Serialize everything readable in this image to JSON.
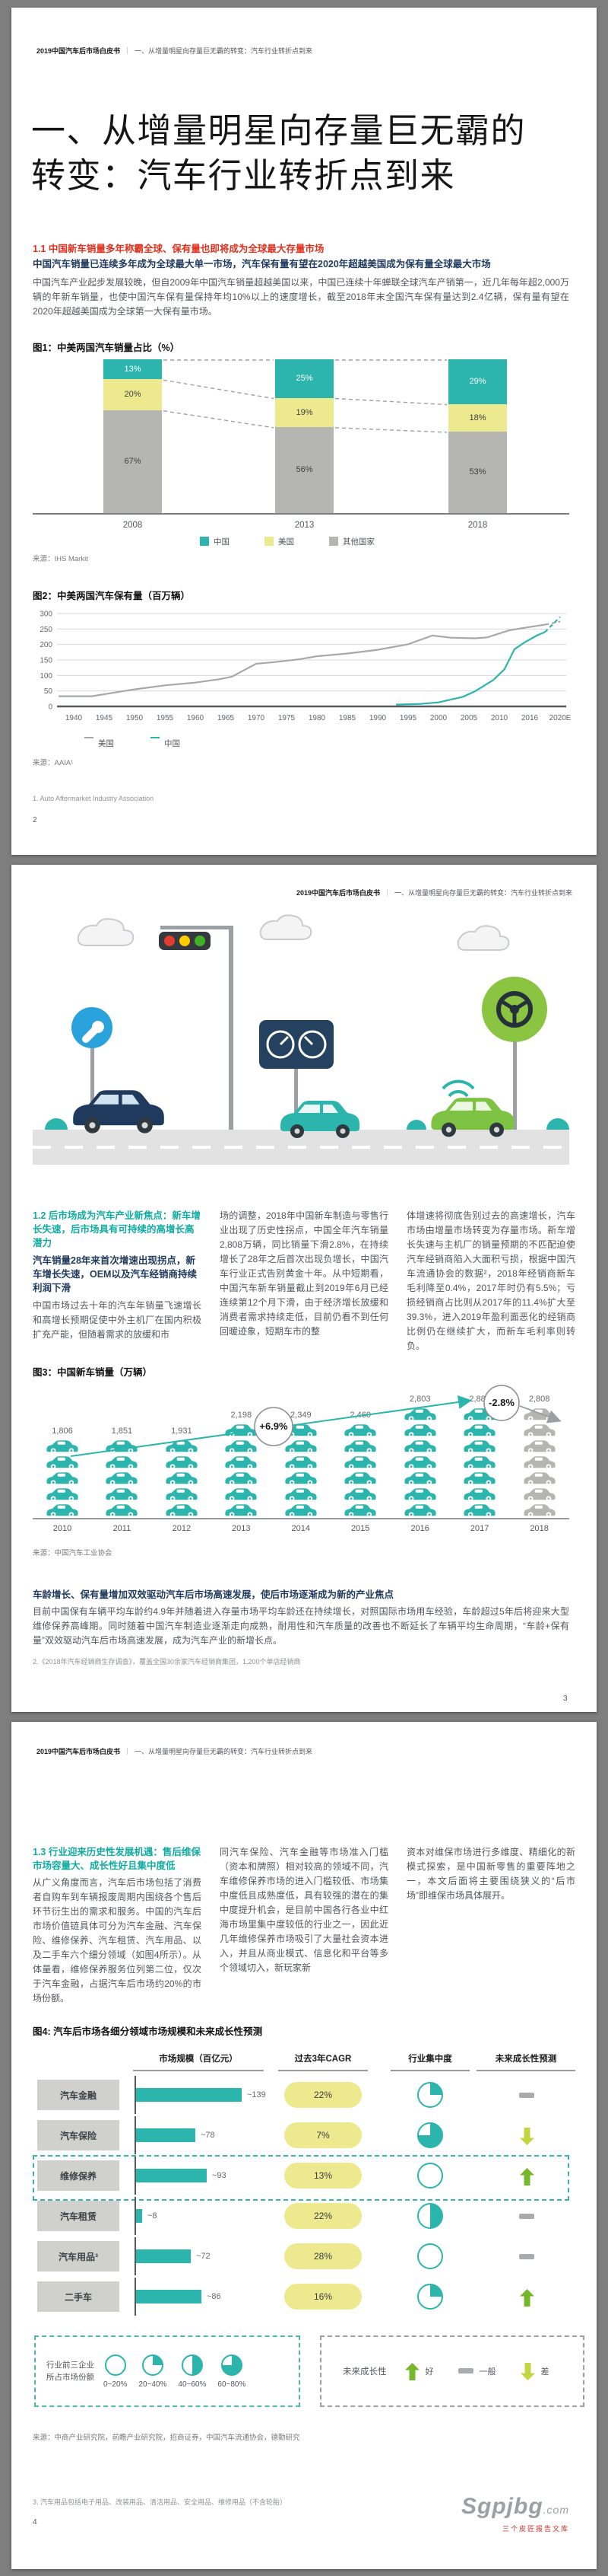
{
  "header": {
    "book": "2019中国汽车后市场白皮书",
    "sep": "｜",
    "chapter": "一、从增量明星向存量巨无霸的转变：汽车行业转折点到来"
  },
  "page1": {
    "title1": "一、从增量明星向存量巨无霸的",
    "title2": "转变：汽车行业转折点到来",
    "s11_heading": "1.1 中国新车销量多年称霸全球、保有量也即将成为全球最大存量市场",
    "s11_sub": "中国汽车销量已连续多年成为全球最大单一市场，汽车保有量有望在2020年超越美国成为保有量全球最大市场",
    "s11_body": "中国汽车产业起步发展较晚，但自2009年中国汽车销量超越美国以来，中国已连续十年蝉联全球汽车产销第一，近几年每年超2,000万辆的年新车销量，也使中国汽车保有量保持年均10%以上的速度增长，截至2018年末全国汽车保有量达到2.4亿辆，保有量有望在2020年超越美国成为全球第一大保有量市场。",
    "fig1_title": "图1：中美两国汽车销量占比（%）",
    "fig1_source": "来源：IHS Markit",
    "fig2_title": "图2：中美两国汽车保有量（百万辆）",
    "fig2_source": "来源：AAIA¹",
    "footnote": "1.  Auto Aftermarket Industry Association",
    "page_no": "2"
  },
  "chart_data": [
    {
      "id": "chart1",
      "type": "bar",
      "subtype": "stacked-percent",
      "title": "图1：中美两国汽车销量占比（%）",
      "categories": [
        "2008",
        "2013",
        "2018"
      ],
      "series": [
        {
          "name": "中国",
          "color": "#2cb5ad",
          "values": [
            13,
            25,
            29
          ]
        },
        {
          "name": "美国",
          "color": "#ece98f",
          "values": [
            20,
            19,
            18
          ]
        },
        {
          "name": "其他国家",
          "color": "#b5b5b2",
          "values": [
            67,
            56,
            53
          ]
        }
      ],
      "ylim": [
        0,
        100
      ]
    },
    {
      "id": "chart2",
      "type": "line",
      "title": "图2：中美两国汽车保有量（百万辆）",
      "y_ticks": [
        0,
        50,
        100,
        150,
        200,
        250,
        300
      ],
      "x_ticks": [
        "1940",
        "1945",
        "1950",
        "1955",
        "1960",
        "1965",
        "1970",
        "1975",
        "1980",
        "1985",
        "1990",
        "1995",
        "2000",
        "2005",
        "2010",
        "2016",
        "2020E"
      ],
      "ylim": [
        0,
        300
      ],
      "grid": true,
      "legend_position": "bottom-left",
      "series": [
        {
          "name": "美国",
          "color": "#a7a8aa",
          "solid": [
            [
              1936,
              33
            ],
            [
              1943,
              33
            ],
            [
              1950,
              55
            ],
            [
              1955,
              68
            ],
            [
              1960,
              77
            ],
            [
              1964,
              88
            ],
            [
              1966,
              96
            ],
            [
              1970,
              138
            ],
            [
              1973,
              143
            ],
            [
              1977,
              152
            ],
            [
              1980,
              162
            ],
            [
              1985,
              171
            ],
            [
              1990,
              183
            ],
            [
              1995,
              201
            ],
            [
              1999,
              229
            ],
            [
              2002,
              222
            ],
            [
              2006,
              220
            ],
            [
              2008,
              223
            ],
            [
              2012,
              246
            ],
            [
              2015,
              254
            ],
            [
              2018,
              264
            ]
          ],
          "dashed": [
            [
              2018,
              264
            ],
            [
              2020,
              274
            ]
          ]
        },
        {
          "name": "中国",
          "color": "#2cb5ad",
          "solid": [
            [
              1993,
              6
            ],
            [
              1997,
              8
            ],
            [
              2000,
              13
            ],
            [
              2004,
              31
            ],
            [
              2006,
              49
            ],
            [
              2009,
              85
            ],
            [
              2011,
              120
            ],
            [
              2013,
              185
            ],
            [
              2015,
              207
            ],
            [
              2017,
              230
            ],
            [
              2018,
              240
            ]
          ],
          "dashed": [
            [
              2018,
              240
            ],
            [
              2020,
              289
            ]
          ]
        }
      ]
    },
    {
      "id": "chart3",
      "type": "bar",
      "subtype": "pictogram-cars",
      "title": "图3：中国新车销量（万辆）",
      "categories": [
        "2010",
        "2011",
        "2012",
        "2013",
        "2014",
        "2015",
        "2016",
        "2017",
        "2018"
      ],
      "values": [
        1806,
        1851,
        1931,
        2198,
        2349,
        2460,
        2803,
        2888,
        2808
      ],
      "labels": [
        "1,806",
        "1,851",
        "1,931",
        "2,198",
        "2,349",
        "2,460",
        "2,803",
        "2,888",
        "2,808"
      ],
      "bar_color": "#2cb5ad",
      "last_bar_color": "#b5b5b2",
      "annotations": [
        {
          "text": "+6.9%"
        },
        {
          "text": "-2.8%"
        }
      ]
    },
    {
      "id": "chart4",
      "type": "table",
      "title": "图4: 汽车后市场各细分领域市场规模和未来成长性预测",
      "columns": [
        "市场规模（百亿元）",
        "过去3年CAGR",
        "行业集中度",
        "未来成长性预测"
      ],
      "max_size": 139,
      "rows": [
        {
          "label": "汽车金融",
          "size": 139,
          "size_label": "~139",
          "cagr": "22%",
          "concentration": "20~40%",
          "trend": "flat",
          "highlight": false
        },
        {
          "label": "汽车保险",
          "size": 78,
          "size_label": "~78",
          "cagr": "7%",
          "concentration": "60~80%",
          "trend": "down",
          "highlight": false
        },
        {
          "label": "维修保养",
          "size": 93,
          "size_label": "~93",
          "cagr": "13%",
          "concentration": "0~20%",
          "trend": "up",
          "highlight": true
        },
        {
          "label": "汽车租赁",
          "size": 8,
          "size_label": "~8",
          "cagr": "22%",
          "concentration": "40~60%",
          "trend": "flat",
          "highlight": false
        },
        {
          "label": "汽车用品³",
          "size": 72,
          "size_label": "~72",
          "cagr": "28%",
          "concentration": "0~20%",
          "trend": "flat",
          "highlight": false
        },
        {
          "label": "二手车",
          "size": 86,
          "size_label": "~86",
          "cagr": "16%",
          "concentration": "20~40%",
          "trend": "up",
          "highlight": false
        }
      ],
      "legend_concentration": {
        "title": "行业前三企业\n所占市场份额",
        "items": [
          "0~20%",
          "20~40%",
          "40~60%",
          "60~80%"
        ]
      },
      "legend_growth": {
        "title": "未来成长性",
        "items": [
          {
            "trend": "up",
            "label": "好"
          },
          {
            "trend": "flat",
            "label": "一般"
          },
          {
            "trend": "down",
            "label": "差"
          }
        ]
      }
    }
  ],
  "page2": {
    "s12_heading": "1.2 后市场成为汽车产业新焦点：新车增长失速，后市场具有可持续的高增长高潜力",
    "s12_sub": "汽车销量28年来首次增速出现拐点，新车增长失速，OEM以及汽车经销商持续利润下滑",
    "col1": "中国市场过去十年的汽车年销量飞速增长和高增长预期促使中外主机厂在国内积极扩充产能，但随着需求的放缓和市",
    "col2": "场的调整，2018年中国新车制造与零售行业出现了历史性拐点，中国全年汽车销量2,808万辆，同比销量下滑2.8%，在持续增长了28年之后首次出现负增长，中国汽车行业正式告别黄金十年。从中短期看，中国汽车新车销量截止到2019年6月已经连续第12个月下滑，由于经济增长放缓和消费者需求持续走低，目前仍看不到任何回暖迹象，短期车市的整",
    "col3": "体增速将彻底告别过去的高速增长，汽车市场由增量市场转变为存量市场。新车增长失速与主机厂的销量预期的不匹配迫使汽车经销商陷入大面积亏损，根据中国汽车流通协会的数据²，2018年经销商新车毛利降至0.4%，2017年时仍有5.5%；亏损经销商占比则从2017年的11.4%扩大至39.3%，进入2019年盈利面恶化的经销商比例仍在继续扩大，而新车毛利率则转负。",
    "fig3_title": "图3：中国新车销量（万辆）",
    "fig3_source": "来源：中国汽车工业协会",
    "s12b_sub": "车龄增长、保有量增加双效驱动汽车后市场高速发展，使后市场逐渐成为新的产业焦点",
    "s12b_body": "目前中国保有车辆平均车龄约4.9年并随着进入存量市场平均车龄还在持续增长，对照国际市场用车经验，车龄超过5年后将迎来大型维修保养高峰期。同时随着中国汽车制造业逐渐走向成熟，耐用性和汽车质量的改善也不断延长了车辆平均生命周期，“车龄+保有量”双效驱动汽车后市场高速发展，成为汽车产业的新增长点。",
    "footnote": "2.《2018年汽车经销商生存调查》，覆盖全国30余家汽车经销商集团，1,200个单店经销商",
    "page_no": "3"
  },
  "page3": {
    "s13_heading": "1.3 行业迎来历史性发展机遇：售后维保市场容量大、成长性好且集中度低",
    "col1": "从广义角度而言，汽车后市场包括了消费者自购车到车辆报废周期内围绕各个售后环节衍生出的需求和服务。中国的汽车后市场价值链具体可分为汽车金融、汽车保险、维修保养、汽车租赁、汽车用品、以及二手车六个细分领域（如图4所示）。从体量看，维修保养服务位列第二位，仅次于汽车金融，占据汽车后市场约20%的市场份额。",
    "col2": "同汽车保险、汽车金融等市场准入门槛（资本和牌照）相对较高的领域不同，汽车维修保养市场的进入门槛较低、市场集中度低且成熟度低，具有较强的潜在的集中度提升机会，是目前中国各行各业中红海市场里集中度较低的行业之一，因此近几年维修保养市场吸引了大量社会资本进入，并且从商业模式、信息化和平台等多个领域切入，新玩家新",
    "col3": "资本对维保市场进行多维度、精细化的新模式探索，是中国新零售的重要阵地之一，本文后面将主要围绕狭义的“后市场”即维保市场具体展开。",
    "fig4_title": "图4: 汽车后市场各细分领域市场规模和未来成长性预测",
    "fig4_source": "来源：中商产业研究院，前瞻产业研究院，招商证券，中国汽车流通协会，德勤研究",
    "footnote": "3. 汽车用品包括电子用品、改装用品、清洁用品、安全用品、维修用品（不含轮胎）",
    "page_no": "4",
    "watermark_main": "Sgpjbg",
    "watermark_suffix": ".com",
    "watermark_sub": "三个皮匠报告文库"
  }
}
